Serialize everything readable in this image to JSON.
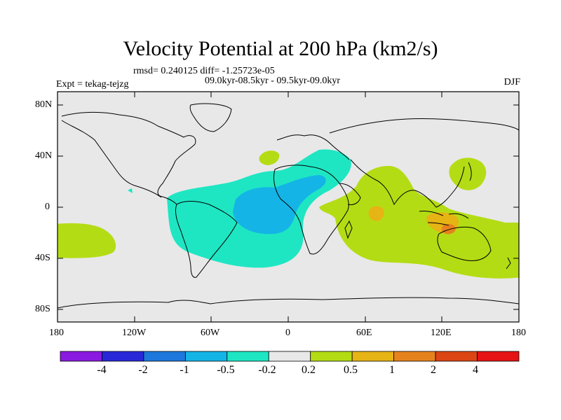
{
  "title": "Velocity Potential at 200 hPa (km2/s)",
  "rmsd_text": "rmsd= 0.240125 diff= -1.25723e-05",
  "expt_text": "Expt = tekag-tejzg",
  "period_text": "09.0kyr-08.5kyr - 09.5kyr-09.0kyr",
  "season": "DJF",
  "y_ticks": [
    "80N",
    "40N",
    "0",
    "40S",
    "80S"
  ],
  "x_ticks": [
    "180",
    "120W",
    "60W",
    "0",
    "60E",
    "120E",
    "180"
  ],
  "colorbar": {
    "labels": [
      "-4",
      "-2",
      "-1",
      "-0.5",
      "-0.2",
      "0.2",
      "0.5",
      "1",
      "2",
      "4"
    ],
    "colors": [
      "#8a1ae0",
      "#2828d8",
      "#1e78dc",
      "#14b4e6",
      "#1ee6c3",
      "#e8e8e8",
      "#b4dc14",
      "#e6b414",
      "#e6821e",
      "#dc4614",
      "#e61414"
    ]
  },
  "colors": {
    "ocean_background": "#e8e8e8",
    "neg_weak": "#1ee6c3",
    "neg_mid": "#14b4e6",
    "pos_weak": "#b4dc14",
    "pos_mid": "#e6b414",
    "pos_strong": "#e6821e",
    "coastline": "#000000"
  }
}
